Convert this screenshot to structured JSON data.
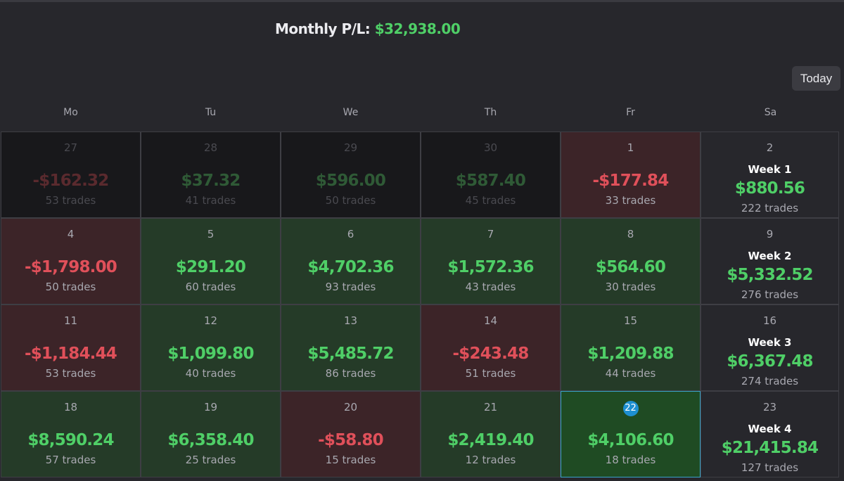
{
  "header": {
    "monthly_label": "Monthly P/L:",
    "monthly_value": "$32,938.00"
  },
  "today_button": "Today",
  "days_of_week": [
    "Mo",
    "Tu",
    "We",
    "Th",
    "Fr",
    "Sa"
  ],
  "weeks": [
    {
      "days": [
        {
          "day": "27",
          "pnl": "-$162.32",
          "trades": "53 trades",
          "kind": "other",
          "sign": "neg"
        },
        {
          "day": "28",
          "pnl": "$37.32",
          "trades": "41 trades",
          "kind": "other",
          "sign": "pos"
        },
        {
          "day": "29",
          "pnl": "$596.00",
          "trades": "50 trades",
          "kind": "other",
          "sign": "pos"
        },
        {
          "day": "30",
          "pnl": "$587.40",
          "trades": "45 trades",
          "kind": "other",
          "sign": "pos"
        },
        {
          "day": "1",
          "pnl": "-$177.84",
          "trades": "33 trades",
          "kind": "loss",
          "sign": "neg"
        }
      ],
      "summary": {
        "day": "2",
        "label": "Week 1",
        "pnl": "$880.56",
        "trades": "222 trades"
      }
    },
    {
      "days": [
        {
          "day": "4",
          "pnl": "-$1,798.00",
          "trades": "50 trades",
          "kind": "loss",
          "sign": "neg"
        },
        {
          "day": "5",
          "pnl": "$291.20",
          "trades": "60 trades",
          "kind": "gain",
          "sign": "pos"
        },
        {
          "day": "6",
          "pnl": "$4,702.36",
          "trades": "93 trades",
          "kind": "gain",
          "sign": "pos"
        },
        {
          "day": "7",
          "pnl": "$1,572.36",
          "trades": "43 trades",
          "kind": "gain",
          "sign": "pos"
        },
        {
          "day": "8",
          "pnl": "$564.60",
          "trades": "30 trades",
          "kind": "gain",
          "sign": "pos"
        }
      ],
      "summary": {
        "day": "9",
        "label": "Week 2",
        "pnl": "$5,332.52",
        "trades": "276 trades"
      }
    },
    {
      "days": [
        {
          "day": "11",
          "pnl": "-$1,184.44",
          "trades": "53 trades",
          "kind": "loss",
          "sign": "neg"
        },
        {
          "day": "12",
          "pnl": "$1,099.80",
          "trades": "40 trades",
          "kind": "gain",
          "sign": "pos"
        },
        {
          "day": "13",
          "pnl": "$5,485.72",
          "trades": "86 trades",
          "kind": "gain",
          "sign": "pos"
        },
        {
          "day": "14",
          "pnl": "-$243.48",
          "trades": "51 trades",
          "kind": "loss",
          "sign": "neg"
        },
        {
          "day": "15",
          "pnl": "$1,209.88",
          "trades": "44 trades",
          "kind": "gain",
          "sign": "pos"
        }
      ],
      "summary": {
        "day": "16",
        "label": "Week 3",
        "pnl": "$6,367.48",
        "trades": "274 trades"
      }
    },
    {
      "days": [
        {
          "day": "18",
          "pnl": "$8,590.24",
          "trades": "57 trades",
          "kind": "gain",
          "sign": "pos"
        },
        {
          "day": "19",
          "pnl": "$6,358.40",
          "trades": "25 trades",
          "kind": "gain",
          "sign": "pos"
        },
        {
          "day": "20",
          "pnl": "-$58.80",
          "trades": "15 trades",
          "kind": "loss",
          "sign": "neg"
        },
        {
          "day": "21",
          "pnl": "$2,419.40",
          "trades": "12 trades",
          "kind": "gain",
          "sign": "pos"
        },
        {
          "day": "22",
          "pnl": "$4,106.60",
          "trades": "18 trades",
          "kind": "today",
          "sign": "pos"
        }
      ],
      "summary": {
        "day": "23",
        "label": "Week 4",
        "pnl": "$21,415.84",
        "trades": "127 trades"
      }
    }
  ],
  "colors": {
    "background": "#27272c",
    "gain_cell": "#253b28",
    "loss_cell": "#3c2428",
    "other_month_cell": "#18181b",
    "today_cell": "#1f4b23",
    "positive_text": "#4fcf67",
    "negative_text": "#e0505a",
    "today_badge": "#1e8fd1"
  }
}
